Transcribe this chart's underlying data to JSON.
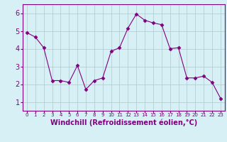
{
  "x": [
    0,
    1,
    2,
    3,
    4,
    5,
    6,
    7,
    8,
    9,
    10,
    11,
    12,
    13,
    14,
    15,
    16,
    17,
    18,
    19,
    20,
    21,
    22,
    23
  ],
  "y": [
    4.9,
    4.65,
    4.05,
    2.2,
    2.2,
    2.1,
    3.05,
    1.7,
    2.2,
    2.35,
    3.85,
    4.05,
    5.15,
    5.95,
    5.6,
    5.45,
    5.35,
    4.0,
    4.05,
    2.35,
    2.35,
    2.45,
    2.1,
    1.2
  ],
  "line_color": "#800080",
  "marker": "D",
  "marker_size": 2.5,
  "bg_color": "#d6f0f5",
  "grid_color": "#b0c8cc",
  "xlabel": "Windchill (Refroidissement éolien,°C)",
  "xlabel_color": "#800080",
  "tick_color": "#800080",
  "ylabel_ticks": [
    1,
    2,
    3,
    4,
    5,
    6
  ],
  "xlim": [
    -0.5,
    23.5
  ],
  "ylim": [
    0.5,
    6.5
  ]
}
